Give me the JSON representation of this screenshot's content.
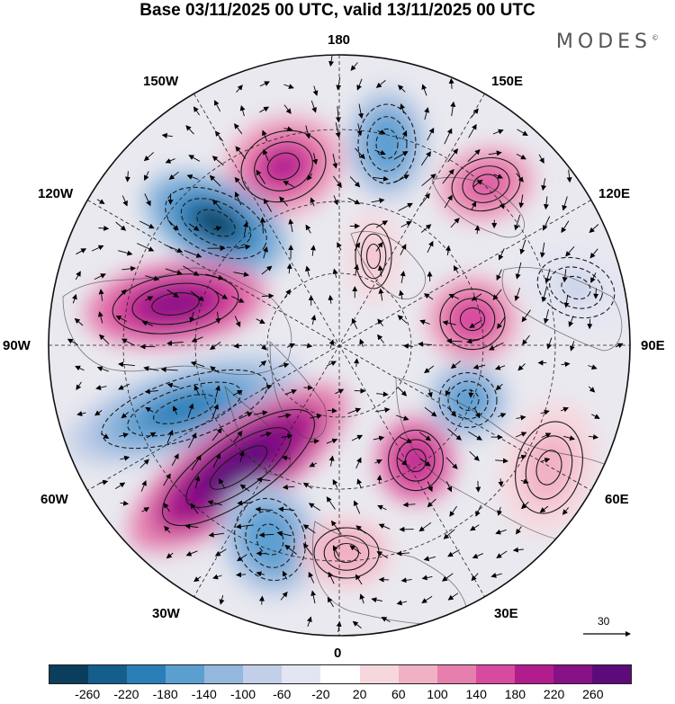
{
  "title": "Base 03/11/2025 00 UTC, valid 13/11/2025 00 UTC",
  "brand": "MODES",
  "brand_mark": "©",
  "longitude_labels": {
    "lon_180": "180",
    "lon_150e": "150E",
    "lon_120e": "120E",
    "lon_90e": "90E",
    "lon_60e": "60E",
    "lon_30e": "30E",
    "lon_0": "0",
    "lon_30w": "30W",
    "lon_60w": "60W",
    "lon_90w": "90W",
    "lon_120w": "120W",
    "lon_150w": "150W"
  },
  "reference_vector": "30",
  "colorbar": {
    "ticks": [
      "-260",
      "-220",
      "-180",
      "-140",
      "-100",
      "-60",
      "-20",
      "20",
      "60",
      "100",
      "140",
      "180",
      "220",
      "260"
    ],
    "colors": [
      "#0b3d5c",
      "#145e8c",
      "#2a7fb8",
      "#5b9fd1",
      "#93b7dd",
      "#c3cfe8",
      "#e4e5f2",
      "#ffffff",
      "#f7d7de",
      "#f1b1c5",
      "#e67fae",
      "#d84a9f",
      "#b21d8e",
      "#871185",
      "#5c0b7a"
    ]
  },
  "anomalies": [
    {
      "name": "ridge-150w",
      "value": 190
    },
    {
      "name": "trough-180",
      "value": -170
    },
    {
      "name": "ridge-150e",
      "value": 160
    },
    {
      "name": "trough-120w",
      "value": -260
    },
    {
      "name": "ridge-100w",
      "value": 240
    },
    {
      "name": "trough-75w",
      "value": -190
    },
    {
      "name": "ridge-55w",
      "value": 270
    },
    {
      "name": "trough-35w",
      "value": -170
    },
    {
      "name": "ridge-0",
      "value": 90
    },
    {
      "name": "ridge-30e",
      "value": 210
    },
    {
      "name": "trough-70e",
      "value": -170
    },
    {
      "name": "ridge-95e",
      "value": 170
    },
    {
      "name": "ridge-60e",
      "value": 80
    },
    {
      "name": "trough-60e-outer",
      "value": -60
    },
    {
      "name": "ridge-170e",
      "value": 70
    }
  ]
}
